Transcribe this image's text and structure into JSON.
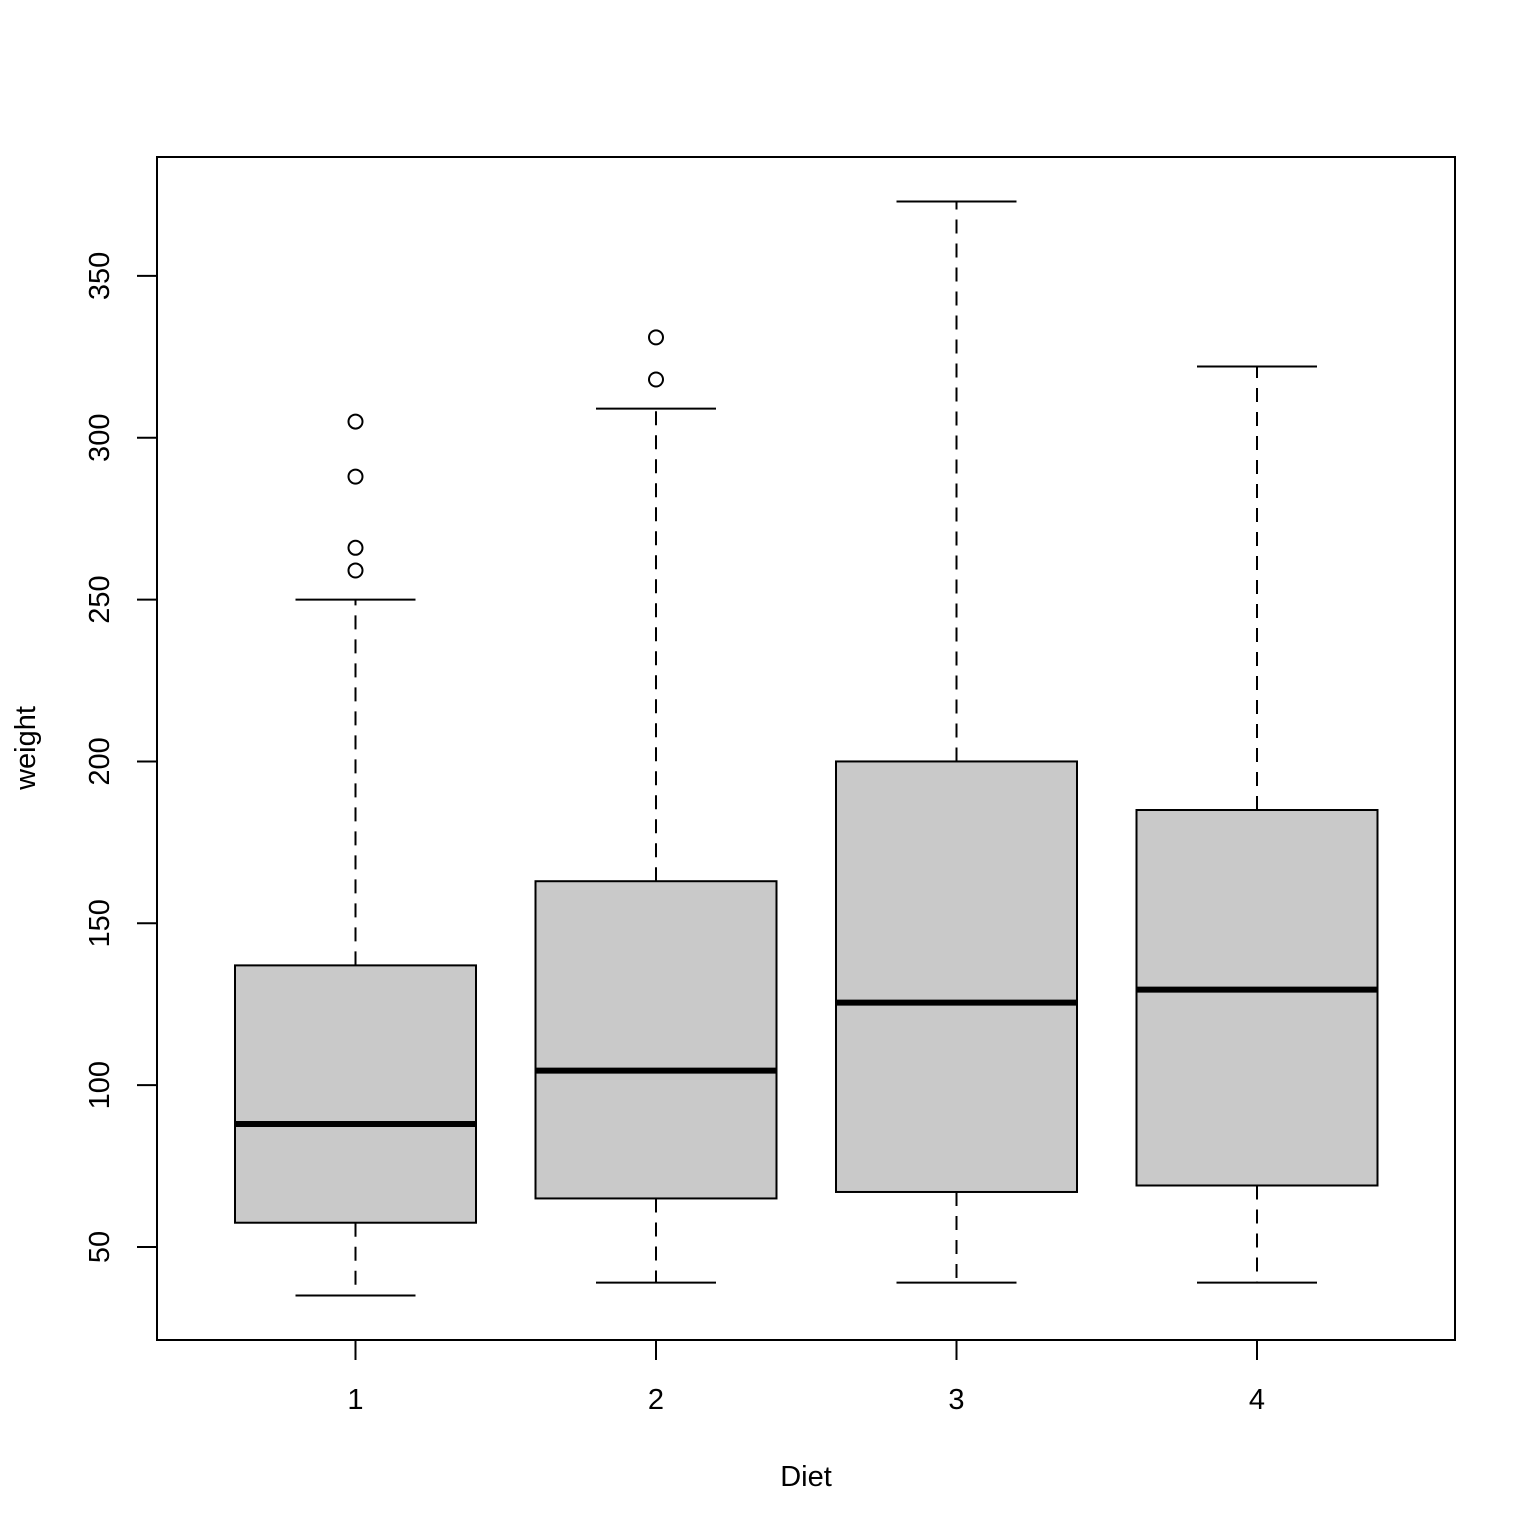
{
  "chart_data": {
    "type": "boxplot",
    "title": "",
    "xlabel": "Diet",
    "ylabel": "weight",
    "categories": [
      "1",
      "2",
      "3",
      "4"
    ],
    "ylim": [
      21,
      386
    ],
    "yticks": [
      50,
      100,
      150,
      200,
      250,
      300,
      350
    ],
    "grid": false,
    "legend": null,
    "box_fill": "#C9C9C9",
    "series": [
      {
        "name": "1",
        "lower_whisker": 35,
        "q1": 57.5,
        "median": 88,
        "q3": 137,
        "upper_whisker": 250,
        "outliers": [
          259,
          266,
          288,
          305
        ]
      },
      {
        "name": "2",
        "lower_whisker": 39,
        "q1": 65,
        "median": 104.5,
        "q3": 163,
        "upper_whisker": 309,
        "outliers": [
          318,
          331
        ]
      },
      {
        "name": "3",
        "lower_whisker": 39,
        "q1": 67,
        "median": 125.5,
        "q3": 200,
        "upper_whisker": 373,
        "outliers": []
      },
      {
        "name": "4",
        "lower_whisker": 39,
        "q1": 69,
        "median": 129.5,
        "q3": 185,
        "upper_whisker": 322,
        "outliers": []
      }
    ]
  }
}
